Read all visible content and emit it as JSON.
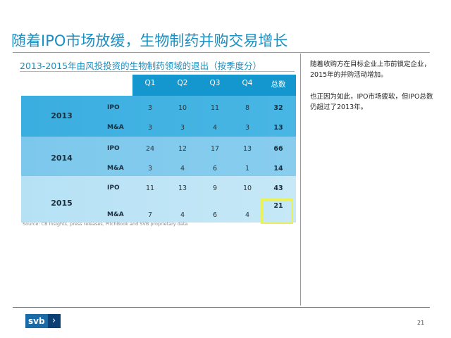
{
  "slide": {
    "title": "随着IPO市场放缓，生物制药并购交易增长",
    "subtitle": "2013-2015年由风投投资的生物制药领域的退出（按季度分）",
    "page_number": "21"
  },
  "table": {
    "headers": [
      "Q1",
      "Q2",
      "Q3",
      "Q4",
      "总数"
    ],
    "years": [
      {
        "year": "2013",
        "rows": [
          {
            "label": "IPO",
            "values": [
              "3",
              "10",
              "11",
              "8"
            ],
            "total": "32"
          },
          {
            "label": "M&A",
            "values": [
              "3",
              "3",
              "4",
              "3"
            ],
            "total": "13"
          }
        ]
      },
      {
        "year": "2014",
        "rows": [
          {
            "label": "IPO",
            "values": [
              "24",
              "12",
              "17",
              "13"
            ],
            "total": "66"
          },
          {
            "label": "M&A",
            "values": [
              "3",
              "4",
              "6",
              "1"
            ],
            "total": "14"
          }
        ]
      },
      {
        "year": "2015",
        "rows": [
          {
            "label": "IPO",
            "values": [
              "11",
              "13",
              "9",
              "10"
            ],
            "total": "43"
          },
          {
            "label": "M&A",
            "values": [
              "7",
              "4",
              "6",
              "4"
            ],
            "total": "21"
          }
        ]
      }
    ],
    "highlight_color": "#e9f25a"
  },
  "source": "Source: CB Insights, press releases, PitchBook and SVB proprietary data",
  "notes": [
    "随着收购方在目标企业上市前锁定企业，2015年的并购活动增加。",
    "也正因为如此，IPO市场疲软，但IPO总数仍超过了2013年。"
  ],
  "logo": {
    "text": "svb",
    "icon": "chevron-right-icon",
    "colors": {
      "primary": "#1a6aa7",
      "secondary": "#0b3f73"
    }
  },
  "colors": {
    "accent": "#1a8fc2",
    "header": "#1497cf",
    "band_2013": "#3aaee0",
    "band_2014": "#7cc8ec",
    "band_2015": "#b6e1f5"
  }
}
